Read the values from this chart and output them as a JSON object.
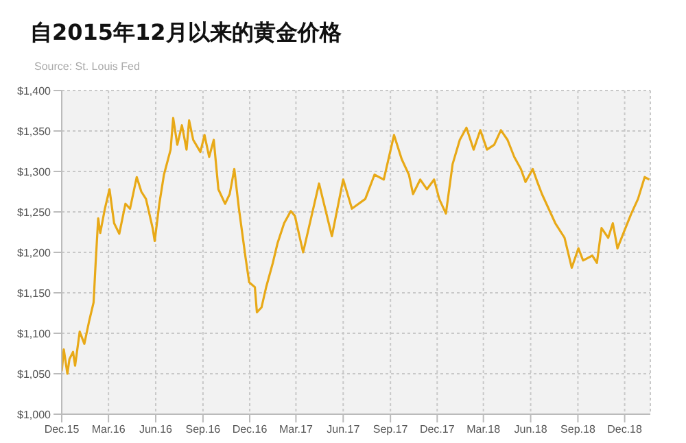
{
  "chart_data": {
    "type": "line",
    "title": "自2015年12月以来的黄金价格",
    "annotations": [
      "Source: St. Louis Fed"
    ],
    "x": [
      "2015-12-01",
      "2015-12-05",
      "2015-12-12",
      "2015-12-16",
      "2015-12-23",
      "2015-12-27",
      "2016-01-05",
      "2016-01-14",
      "2016-01-23",
      "2016-02-01",
      "2016-02-05",
      "2016-02-10",
      "2016-02-14",
      "2016-02-23",
      "2016-03-03",
      "2016-03-12",
      "2016-03-22",
      "2016-04-03",
      "2016-04-12",
      "2016-04-25",
      "2016-05-04",
      "2016-05-13",
      "2016-05-26",
      "2016-05-30",
      "2016-06-08",
      "2016-06-17",
      "2016-06-30",
      "2016-07-05",
      "2016-07-13",
      "2016-07-22",
      "2016-07-31",
      "2016-08-05",
      "2016-08-13",
      "2016-08-27",
      "2016-09-04",
      "2016-09-13",
      "2016-09-22",
      "2016-10-01",
      "2016-10-14",
      "2016-10-23",
      "2016-11-01",
      "2016-11-10",
      "2016-11-23",
      "2016-11-30",
      "2016-12-11",
      "2016-12-15",
      "2016-12-24",
      "2017-01-02",
      "2017-01-15",
      "2017-01-24",
      "2017-02-06",
      "2017-02-19",
      "2017-02-27",
      "2017-03-15",
      "2017-04-15",
      "2017-05-10",
      "2017-06-01",
      "2017-06-18",
      "2017-07-14",
      "2017-08-01",
      "2017-08-19",
      "2017-09-08",
      "2017-09-23",
      "2017-10-07",
      "2017-10-15",
      "2017-10-29",
      "2017-11-11",
      "2017-11-25",
      "2017-12-05",
      "2017-12-18",
      "2017-12-31",
      "2018-01-14",
      "2018-01-27",
      "2018-02-10",
      "2018-02-23",
      "2018-03-08",
      "2018-03-22",
      "2018-04-04",
      "2018-04-17",
      "2018-04-30",
      "2018-05-13",
      "2018-05-22",
      "2018-06-05",
      "2018-06-14",
      "2018-06-23",
      "2018-07-06",
      "2018-07-19",
      "2018-08-06",
      "2018-08-20",
      "2018-09-02",
      "2018-09-11",
      "2018-09-29",
      "2018-10-08",
      "2018-10-17",
      "2018-10-30",
      "2018-11-08",
      "2018-11-17",
      "2018-11-30",
      "2018-12-14",
      "2018-12-27",
      "2019-01-09",
      "2019-01-18"
    ],
    "series": [
      {
        "color": "#e8a917",
        "values": [
          1053,
          1080,
          1050,
          1068,
          1077,
          1060,
          1102,
          1087,
          1114,
          1138,
          1187,
          1242,
          1224,
          1254,
          1278,
          1236,
          1223,
          1260,
          1254,
          1293,
          1275,
          1266,
          1230,
          1214,
          1260,
          1296,
          1327,
          1366,
          1333,
          1357,
          1327,
          1363,
          1339,
          1324,
          1345,
          1318,
          1339,
          1278,
          1260,
          1272,
          1303,
          1254,
          1193,
          1163,
          1157,
          1126,
          1132,
          1157,
          1187,
          1211,
          1236,
          1251,
          1245,
          1200,
          1285,
          1220,
          1290,
          1254,
          1266,
          1296,
          1290,
          1345,
          1315,
          1296,
          1272,
          1290,
          1278,
          1290,
          1266,
          1248,
          1309,
          1339,
          1354,
          1327,
          1351,
          1327,
          1333,
          1351,
          1339,
          1318,
          1303,
          1287,
          1303,
          1287,
          1272,
          1254,
          1236,
          1218,
          1181,
          1205,
          1190,
          1196,
          1187,
          1230,
          1218,
          1236,
          1205,
          1226,
          1248,
          1266,
          1293,
          1290
        ]
      }
    ],
    "xlim": [
      "2015-12-01",
      "2019-01-20"
    ],
    "xticks": [
      {
        "value": "2015-12-01",
        "label": "Dec.15"
      },
      {
        "value": "2016-03-01",
        "label": "Mar.16"
      },
      {
        "value": "2016-06-01",
        "label": "Jun.16"
      },
      {
        "value": "2016-09-01",
        "label": "Sep.16"
      },
      {
        "value": "2016-12-01",
        "label": "Dec.16"
      },
      {
        "value": "2017-03-01",
        "label": "Mar.17"
      },
      {
        "value": "2017-06-01",
        "label": "Jun.17"
      },
      {
        "value": "2017-09-01",
        "label": "Sep.17"
      },
      {
        "value": "2017-12-01",
        "label": "Dec.17"
      },
      {
        "value": "2018-03-01",
        "label": "Mar.18"
      },
      {
        "value": "2018-06-01",
        "label": "Jun.18"
      },
      {
        "value": "2018-09-01",
        "label": "Sep.18"
      },
      {
        "value": "2018-12-01",
        "label": "Dec.18"
      }
    ],
    "ylim": [
      1000,
      1400
    ],
    "yticks": [
      {
        "value": 1000,
        "label": "$1,000"
      },
      {
        "value": 1050,
        "label": "$1,050"
      },
      {
        "value": 1100,
        "label": "$1,100"
      },
      {
        "value": 1150,
        "label": "$1,150"
      },
      {
        "value": 1200,
        "label": "$1,200"
      },
      {
        "value": 1250,
        "label": "$1,250"
      },
      {
        "value": 1300,
        "label": "$1,300"
      },
      {
        "value": 1350,
        "label": "$1,350"
      },
      {
        "value": 1400,
        "label": "$1,400"
      }
    ],
    "grid": true,
    "marker": "none",
    "line_style": "solid"
  }
}
